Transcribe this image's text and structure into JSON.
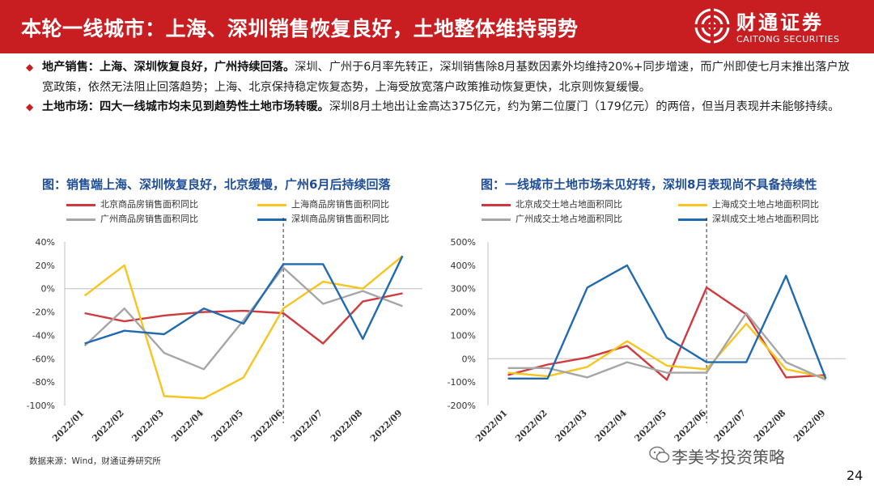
{
  "header": {
    "title": "本轮一线城市：上海、深圳销售恢复良好，土地整体维持弱势",
    "logo_cn": "财通证券",
    "logo_en": "CAITONG SECURITIES",
    "brand_color": "#c81e22"
  },
  "bullets": [
    {
      "bold": "地产销售：上海、深圳恢复良好，广州持续回落。",
      "text": "深圳、广州于6月率先转正，深圳销售除8月基数因素外均维持20%+同步增速，而广州即使七月末推出落户放宽政策，依然无法阻止回落趋势；上海、北京保持稳定恢复态势，上海受放宽落户政策推动恢复更快，北京则恢复缓慢。"
    },
    {
      "bold": "土地市场：四大一线城市均未见到趋势性土地市场转暖。",
      "text": "深圳8月土地出让金高达375亿元，约为第二位厦门（179亿元）的两倍，但当月表现并未能够持续。"
    }
  ],
  "source": "数据来源：Wind，财通证券研究所",
  "watermark": "李美岑投资策略",
  "page_number": "24",
  "chart_data": [
    {
      "type": "line",
      "title": "图：销售端上海、深圳恢复良好，北京缓慢，广州6月后持续回落",
      "categories": [
        "2022/01",
        "2022/02",
        "2022/03",
        "2022/04",
        "2022/05",
        "2022/06",
        "2022/07",
        "2022/08",
        "2022/09"
      ],
      "ylim": [
        -100,
        40
      ],
      "yticks": [
        40,
        20,
        0,
        -20,
        -40,
        -60,
        -80,
        -100
      ],
      "ytick_labels": [
        "40%",
        "20%",
        "0%",
        "-20%",
        "-40%",
        "-60%",
        "-80%",
        "-100%"
      ],
      "reference_line": "2022/06",
      "series": [
        {
          "name": "北京商品房销售面积同比",
          "color": "#d03a3f",
          "values": [
            -21,
            -28,
            -23,
            -20,
            -19,
            -21,
            -47,
            -11,
            -4
          ]
        },
        {
          "name": "上海商品房销售面积同比",
          "color": "#f7c51d",
          "values": [
            -6,
            20,
            -92,
            -94,
            -76,
            -17,
            6,
            0,
            28
          ]
        },
        {
          "name": "广州商品房销售面积同比",
          "color": "#a6a6a6",
          "values": [
            -49,
            -17,
            -55,
            -69,
            -27,
            18,
            -13,
            -2,
            -15
          ]
        },
        {
          "name": "深圳商品房销售面积同比",
          "color": "#1f6ab0",
          "values": [
            -47,
            -36,
            -39,
            -17,
            -30,
            21,
            21,
            -43,
            28
          ]
        }
      ]
    },
    {
      "type": "line",
      "title": "图：一线城市土地市场未见好转，深圳8月表现尚不具备持续性",
      "categories": [
        "2022/01",
        "2022/02",
        "2022/03",
        "2022/04",
        "2022/05",
        "2022/06",
        "2022/07",
        "2022/08",
        "2022/09"
      ],
      "ylim": [
        -200,
        500
      ],
      "yticks": [
        500,
        400,
        300,
        200,
        100,
        0,
        -100,
        -200
      ],
      "ytick_labels": [
        "500%",
        "400%",
        "300%",
        "200%",
        "100%",
        "0%",
        "-100%",
        "-200%"
      ],
      "reference_line": "2022/06",
      "series": [
        {
          "name": "北京成交土地占地面积同比",
          "color": "#d03a3f",
          "values": [
            -70,
            -25,
            5,
            55,
            -90,
            305,
            190,
            -80,
            -70
          ]
        },
        {
          "name": "上海成交土地占地面积同比",
          "color": "#f7c51d",
          "values": [
            -60,
            -75,
            -35,
            75,
            -30,
            -45,
            150,
            -45,
            -80
          ]
        },
        {
          "name": "广州成交土地占地面积同比",
          "color": "#a6a6a6",
          "values": [
            -40,
            -40,
            -80,
            -15,
            -60,
            -60,
            195,
            -15,
            -90
          ]
        },
        {
          "name": "深圳成交土地占地面积同比",
          "color": "#1f6ab0",
          "values": [
            -85,
            -85,
            305,
            400,
            90,
            -15,
            -15,
            355,
            -85
          ]
        }
      ]
    }
  ]
}
